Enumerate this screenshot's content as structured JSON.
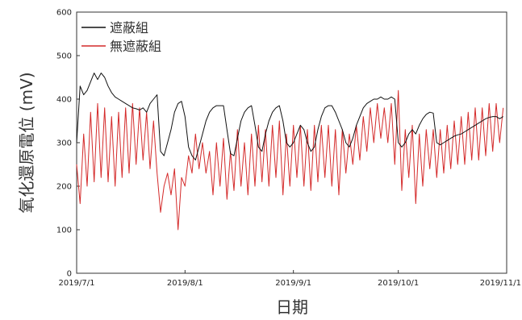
{
  "chart_data": {
    "type": "line",
    "xlabel": "日期",
    "ylabel": "氧化還原電位 (mV)",
    "ylim": [
      0,
      600
    ],
    "yticks": [
      0,
      100,
      200,
      300,
      400,
      500,
      600
    ],
    "xlim": [
      "2019-07-01",
      "2019-11-01"
    ],
    "xticks": [
      {
        "date": "2019-07-01",
        "label": "2019/7/1"
      },
      {
        "date": "2019-08-01",
        "label": "2019/8/1"
      },
      {
        "date": "2019-09-01",
        "label": "2019/9/1"
      },
      {
        "date": "2019-10-01",
        "label": "2019/10/1"
      },
      {
        "date": "2019-11-01",
        "label": "2019/11/1"
      }
    ],
    "legend_position": "top-left",
    "series": [
      {
        "name": "遮蔽組",
        "color": "#111111",
        "points": [
          [
            "2019-07-01",
            300
          ],
          [
            "2019-07-02",
            430
          ],
          [
            "2019-07-03",
            410
          ],
          [
            "2019-07-04",
            420
          ],
          [
            "2019-07-05",
            440
          ],
          [
            "2019-07-06",
            460
          ],
          [
            "2019-07-07",
            445
          ],
          [
            "2019-07-08",
            460
          ],
          [
            "2019-07-09",
            450
          ],
          [
            "2019-07-10",
            430
          ],
          [
            "2019-07-11",
            415
          ],
          [
            "2019-07-12",
            405
          ],
          [
            "2019-07-13",
            400
          ],
          [
            "2019-07-14",
            395
          ],
          [
            "2019-07-15",
            390
          ],
          [
            "2019-07-16",
            385
          ],
          [
            "2019-07-17",
            380
          ],
          [
            "2019-07-18",
            378
          ],
          [
            "2019-07-19",
            375
          ],
          [
            "2019-07-20",
            380
          ],
          [
            "2019-07-21",
            370
          ],
          [
            "2019-07-22",
            390
          ],
          [
            "2019-07-23",
            400
          ],
          [
            "2019-07-24",
            410
          ],
          [
            "2019-07-25",
            280
          ],
          [
            "2019-07-26",
            270
          ],
          [
            "2019-07-27",
            300
          ],
          [
            "2019-07-28",
            330
          ],
          [
            "2019-07-29",
            370
          ],
          [
            "2019-07-30",
            390
          ],
          [
            "2019-07-31",
            395
          ],
          [
            "2019-08-01",
            360
          ],
          [
            "2019-08-02",
            290
          ],
          [
            "2019-08-03",
            270
          ],
          [
            "2019-08-04",
            260
          ],
          [
            "2019-08-05",
            290
          ],
          [
            "2019-08-06",
            320
          ],
          [
            "2019-08-07",
            350
          ],
          [
            "2019-08-08",
            370
          ],
          [
            "2019-08-09",
            380
          ],
          [
            "2019-08-10",
            385
          ],
          [
            "2019-08-11",
            385
          ],
          [
            "2019-08-12",
            385
          ],
          [
            "2019-08-13",
            330
          ],
          [
            "2019-08-14",
            275
          ],
          [
            "2019-08-15",
            270
          ],
          [
            "2019-08-16",
            310
          ],
          [
            "2019-08-17",
            350
          ],
          [
            "2019-08-18",
            370
          ],
          [
            "2019-08-19",
            380
          ],
          [
            "2019-08-20",
            385
          ],
          [
            "2019-08-21",
            340
          ],
          [
            "2019-08-22",
            290
          ],
          [
            "2019-08-23",
            280
          ],
          [
            "2019-08-24",
            320
          ],
          [
            "2019-08-25",
            350
          ],
          [
            "2019-08-26",
            370
          ],
          [
            "2019-08-27",
            380
          ],
          [
            "2019-08-28",
            385
          ],
          [
            "2019-08-29",
            350
          ],
          [
            "2019-08-30",
            300
          ],
          [
            "2019-08-31",
            290
          ],
          [
            "2019-09-01",
            300
          ],
          [
            "2019-09-02",
            320
          ],
          [
            "2019-09-03",
            340
          ],
          [
            "2019-09-04",
            330
          ],
          [
            "2019-09-05",
            300
          ],
          [
            "2019-09-06",
            280
          ],
          [
            "2019-09-07",
            290
          ],
          [
            "2019-09-08",
            330
          ],
          [
            "2019-09-09",
            360
          ],
          [
            "2019-09-10",
            380
          ],
          [
            "2019-09-11",
            385
          ],
          [
            "2019-09-12",
            385
          ],
          [
            "2019-09-13",
            370
          ],
          [
            "2019-09-14",
            350
          ],
          [
            "2019-09-15",
            330
          ],
          [
            "2019-09-16",
            300
          ],
          [
            "2019-09-17",
            290
          ],
          [
            "2019-09-18",
            310
          ],
          [
            "2019-09-19",
            340
          ],
          [
            "2019-09-20",
            360
          ],
          [
            "2019-09-21",
            380
          ],
          [
            "2019-09-22",
            390
          ],
          [
            "2019-09-23",
            395
          ],
          [
            "2019-09-24",
            400
          ],
          [
            "2019-09-25",
            400
          ],
          [
            "2019-09-26",
            405
          ],
          [
            "2019-09-27",
            400
          ],
          [
            "2019-09-28",
            400
          ],
          [
            "2019-09-29",
            405
          ],
          [
            "2019-09-30",
            400
          ],
          [
            "2019-10-01",
            300
          ],
          [
            "2019-10-02",
            290
          ],
          [
            "2019-10-03",
            300
          ],
          [
            "2019-10-04",
            320
          ],
          [
            "2019-10-05",
            330
          ],
          [
            "2019-10-06",
            320
          ],
          [
            "2019-10-07",
            340
          ],
          [
            "2019-10-08",
            355
          ],
          [
            "2019-10-09",
            365
          ],
          [
            "2019-10-10",
            370
          ],
          [
            "2019-10-11",
            368
          ],
          [
            "2019-10-12",
            300
          ],
          [
            "2019-10-13",
            295
          ],
          [
            "2019-10-14",
            300
          ],
          [
            "2019-10-15",
            305
          ],
          [
            "2019-10-16",
            310
          ],
          [
            "2019-10-17",
            315
          ],
          [
            "2019-10-18",
            318
          ],
          [
            "2019-10-19",
            320
          ],
          [
            "2019-10-20",
            325
          ],
          [
            "2019-10-21",
            330
          ],
          [
            "2019-10-22",
            335
          ],
          [
            "2019-10-23",
            340
          ],
          [
            "2019-10-24",
            345
          ],
          [
            "2019-10-25",
            350
          ],
          [
            "2019-10-26",
            355
          ],
          [
            "2019-10-27",
            358
          ],
          [
            "2019-10-28",
            360
          ],
          [
            "2019-10-29",
            360
          ],
          [
            "2019-10-30",
            355
          ],
          [
            "2019-10-31",
            360
          ]
        ]
      },
      {
        "name": "無遮蔽組",
        "color": "#d42a2a",
        "points": [
          [
            "2019-07-01",
            250
          ],
          [
            "2019-07-02",
            160
          ],
          [
            "2019-07-03",
            320
          ],
          [
            "2019-07-04",
            200
          ],
          [
            "2019-07-05",
            370
          ],
          [
            "2019-07-06",
            210
          ],
          [
            "2019-07-07",
            390
          ],
          [
            "2019-07-08",
            220
          ],
          [
            "2019-07-09",
            380
          ],
          [
            "2019-07-10",
            210
          ],
          [
            "2019-07-11",
            360
          ],
          [
            "2019-07-12",
            200
          ],
          [
            "2019-07-13",
            370
          ],
          [
            "2019-07-14",
            220
          ],
          [
            "2019-07-15",
            380
          ],
          [
            "2019-07-16",
            230
          ],
          [
            "2019-07-17",
            390
          ],
          [
            "2019-07-18",
            250
          ],
          [
            "2019-07-19",
            380
          ],
          [
            "2019-07-20",
            260
          ],
          [
            "2019-07-21",
            370
          ],
          [
            "2019-07-22",
            240
          ],
          [
            "2019-07-23",
            350
          ],
          [
            "2019-07-24",
            230
          ],
          [
            "2019-07-25",
            140
          ],
          [
            "2019-07-26",
            200
          ],
          [
            "2019-07-27",
            230
          ],
          [
            "2019-07-28",
            180
          ],
          [
            "2019-07-29",
            240
          ],
          [
            "2019-07-30",
            100
          ],
          [
            "2019-07-31",
            220
          ],
          [
            "2019-08-01",
            200
          ],
          [
            "2019-08-02",
            270
          ],
          [
            "2019-08-03",
            230
          ],
          [
            "2019-08-04",
            320
          ],
          [
            "2019-08-05",
            240
          ],
          [
            "2019-08-06",
            300
          ],
          [
            "2019-08-07",
            230
          ],
          [
            "2019-08-08",
            280
          ],
          [
            "2019-08-09",
            180
          ],
          [
            "2019-08-10",
            300
          ],
          [
            "2019-08-11",
            200
          ],
          [
            "2019-08-12",
            310
          ],
          [
            "2019-08-13",
            170
          ],
          [
            "2019-08-14",
            280
          ],
          [
            "2019-08-15",
            190
          ],
          [
            "2019-08-16",
            330
          ],
          [
            "2019-08-17",
            200
          ],
          [
            "2019-08-18",
            300
          ],
          [
            "2019-08-19",
            180
          ],
          [
            "2019-08-20",
            320
          ],
          [
            "2019-08-21",
            200
          ],
          [
            "2019-08-22",
            340
          ],
          [
            "2019-08-23",
            210
          ],
          [
            "2019-08-24",
            330
          ],
          [
            "2019-08-25",
            200
          ],
          [
            "2019-08-26",
            340
          ],
          [
            "2019-08-27",
            220
          ],
          [
            "2019-08-28",
            350
          ],
          [
            "2019-08-29",
            180
          ],
          [
            "2019-08-30",
            320
          ],
          [
            "2019-08-31",
            200
          ],
          [
            "2019-09-01",
            340
          ],
          [
            "2019-09-02",
            220
          ],
          [
            "2019-09-03",
            340
          ],
          [
            "2019-09-04",
            200
          ],
          [
            "2019-09-05",
            330
          ],
          [
            "2019-09-06",
            190
          ],
          [
            "2019-09-07",
            340
          ],
          [
            "2019-09-08",
            210
          ],
          [
            "2019-09-09",
            340
          ],
          [
            "2019-09-10",
            220
          ],
          [
            "2019-09-11",
            340
          ],
          [
            "2019-09-12",
            200
          ],
          [
            "2019-09-13",
            330
          ],
          [
            "2019-09-14",
            180
          ],
          [
            "2019-09-15",
            330
          ],
          [
            "2019-09-16",
            230
          ],
          [
            "2019-09-17",
            320
          ],
          [
            "2019-09-18",
            250
          ],
          [
            "2019-09-19",
            340
          ],
          [
            "2019-09-20",
            260
          ],
          [
            "2019-09-21",
            360
          ],
          [
            "2019-09-22",
            280
          ],
          [
            "2019-09-23",
            380
          ],
          [
            "2019-09-24",
            300
          ],
          [
            "2019-09-25",
            390
          ],
          [
            "2019-09-26",
            310
          ],
          [
            "2019-09-27",
            380
          ],
          [
            "2019-09-28",
            300
          ],
          [
            "2019-09-29",
            390
          ],
          [
            "2019-09-30",
            250
          ],
          [
            "2019-10-01",
            420
          ],
          [
            "2019-10-02",
            190
          ],
          [
            "2019-10-03",
            330
          ],
          [
            "2019-10-04",
            220
          ],
          [
            "2019-10-05",
            340
          ],
          [
            "2019-10-06",
            160
          ],
          [
            "2019-10-07",
            320
          ],
          [
            "2019-10-08",
            200
          ],
          [
            "2019-10-09",
            330
          ],
          [
            "2019-10-10",
            240
          ],
          [
            "2019-10-11",
            330
          ],
          [
            "2019-10-12",
            220
          ],
          [
            "2019-10-13",
            330
          ],
          [
            "2019-10-14",
            230
          ],
          [
            "2019-10-15",
            340
          ],
          [
            "2019-10-16",
            240
          ],
          [
            "2019-10-17",
            350
          ],
          [
            "2019-10-18",
            250
          ],
          [
            "2019-10-19",
            360
          ],
          [
            "2019-10-20",
            250
          ],
          [
            "2019-10-21",
            370
          ],
          [
            "2019-10-22",
            260
          ],
          [
            "2019-10-23",
            380
          ],
          [
            "2019-10-24",
            260
          ],
          [
            "2019-10-25",
            380
          ],
          [
            "2019-10-26",
            270
          ],
          [
            "2019-10-27",
            390
          ],
          [
            "2019-10-28",
            280
          ],
          [
            "2019-10-29",
            390
          ],
          [
            "2019-10-30",
            300
          ],
          [
            "2019-10-31",
            380
          ]
        ]
      }
    ]
  }
}
